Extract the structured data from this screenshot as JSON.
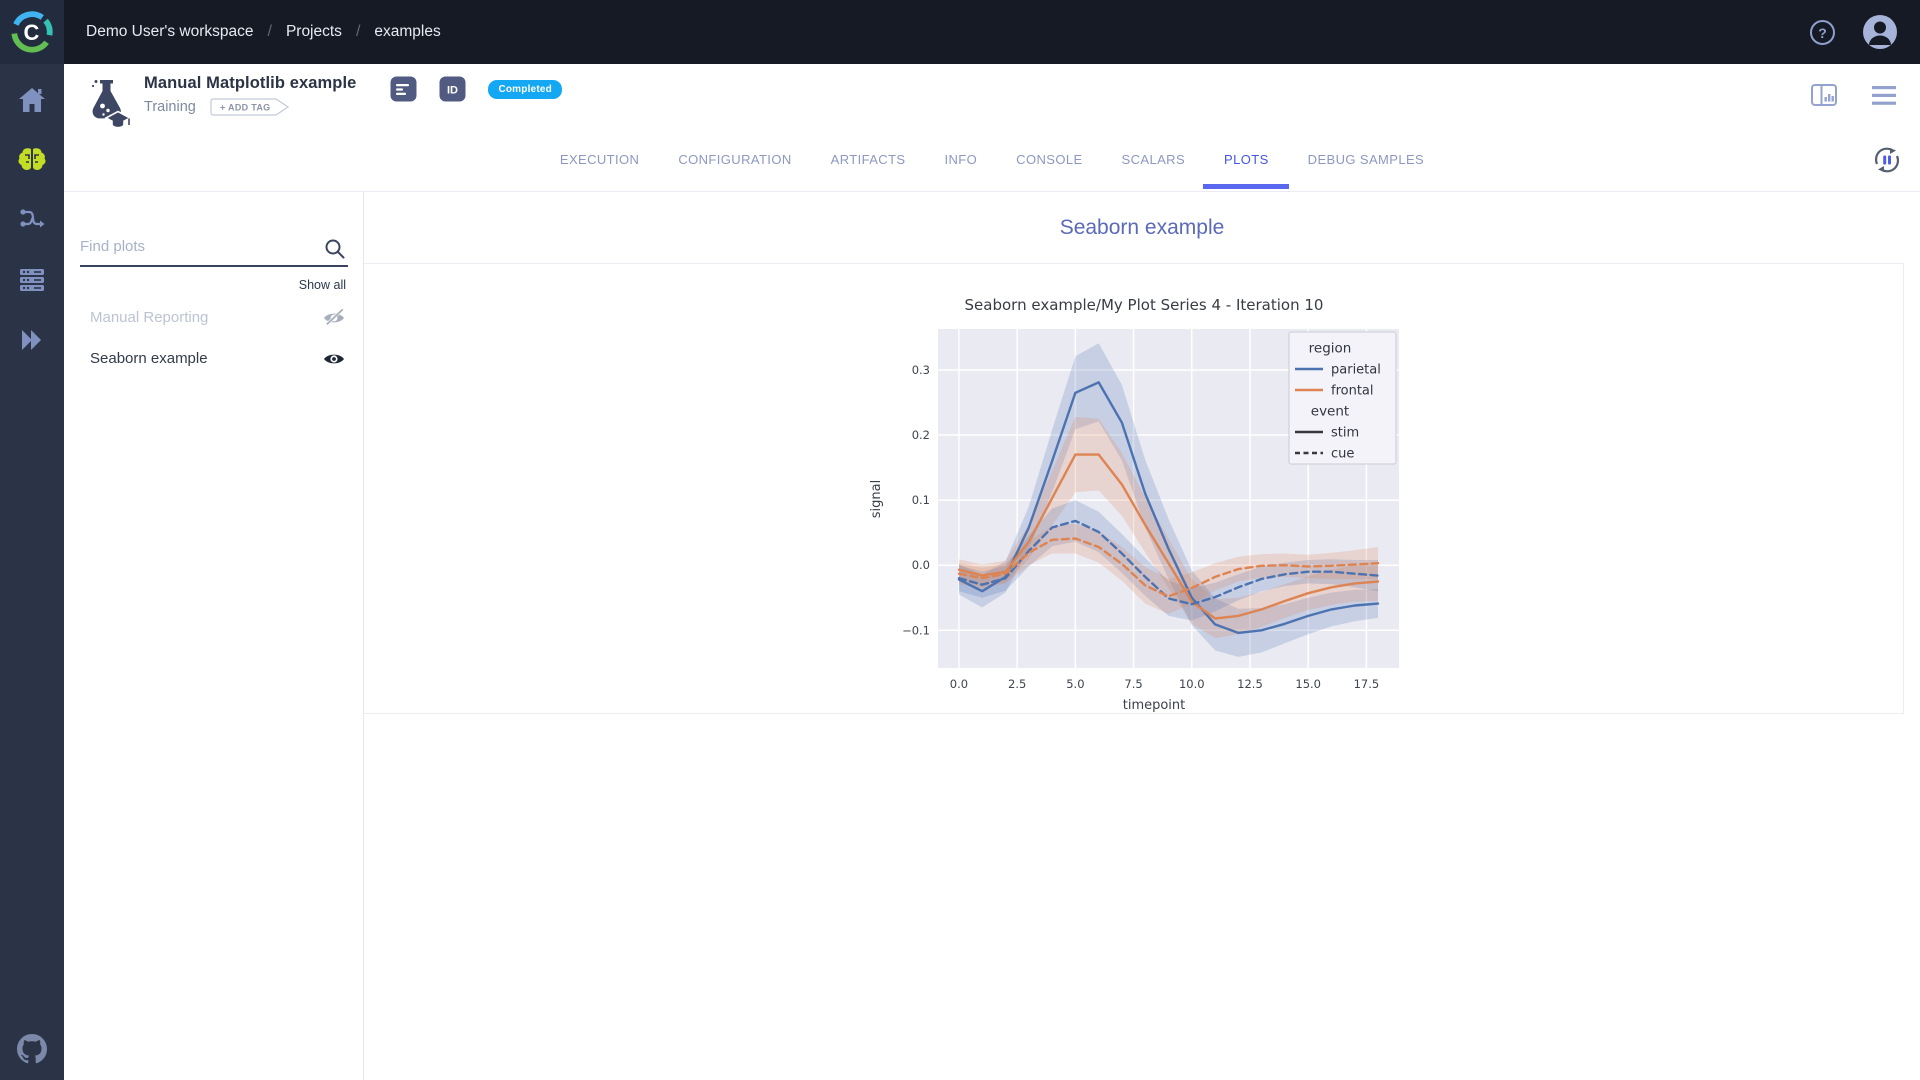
{
  "topbar": {
    "breadcrumbs": [
      "Demo User's workspace",
      "Projects",
      "examples"
    ],
    "icons": [
      "clearml-logo",
      "help-icon",
      "avatar"
    ]
  },
  "sidebar": {
    "icons": [
      "home-icon",
      "projects-brain-icon",
      "pipelines-icon",
      "datasets-icon",
      "reports-icon",
      "github-icon"
    ],
    "active_color": "#c3dd25",
    "icon_color": "#8091c0"
  },
  "header": {
    "title": "Manual Matplotlib example",
    "status": "Training",
    "add_tag_label": "+ ADD TAG",
    "badge": "Completed",
    "badge_color": "#14a8f4",
    "icons": [
      "experiment-flask-icon",
      "description-icon",
      "id-icon",
      "layout-icon",
      "menu-icon"
    ]
  },
  "tabs": {
    "items": [
      "EXECUTION",
      "CONFIGURATION",
      "ARTIFACTS",
      "INFO",
      "CONSOLE",
      "SCALARS",
      "PLOTS",
      "DEBUG SAMPLES"
    ],
    "active": "PLOTS",
    "active_color": "#4554e6"
  },
  "plots_panel": {
    "search_placeholder": "Find plots",
    "show_all": "Show all",
    "items": [
      {
        "label": "Manual Reporting",
        "visible": false
      },
      {
        "label": "Seaborn example",
        "visible": true
      }
    ]
  },
  "main": {
    "heading": "Seaborn example"
  },
  "chart_data": {
    "type": "line",
    "title": "Seaborn example/My Plot Series 4 - Iteration 10",
    "xlabel": "timepoint",
    "ylabel": "signal",
    "x": [
      0,
      1,
      2,
      3,
      4,
      5,
      6,
      7,
      8,
      9,
      10,
      11,
      12,
      13,
      14,
      15,
      16,
      17,
      18
    ],
    "xlim": [
      -0.9,
      18.9
    ],
    "ylim": [
      -0.158,
      0.363
    ],
    "xticks": [
      0.0,
      2.5,
      5.0,
      7.5,
      10.0,
      12.5,
      15.0,
      17.5
    ],
    "yticks": [
      -0.1,
      0.0,
      0.1,
      0.2,
      0.3
    ],
    "background": "#eaeaf2",
    "grid_color": "#ffffff",
    "series": [
      {
        "name": "parietal-stim",
        "region": "parietal",
        "event": "stim",
        "color": "#4c72b0",
        "dash": "solid",
        "values": [
          -0.022,
          -0.04,
          -0.018,
          0.058,
          0.16,
          0.265,
          0.281,
          0.219,
          0.11,
          0.025,
          -0.05,
          -0.091,
          -0.104,
          -0.1,
          -0.09,
          -0.078,
          -0.068,
          -0.062,
          -0.059
        ],
        "band": [
          0.023,
          0.025,
          0.024,
          0.032,
          0.048,
          0.056,
          0.06,
          0.058,
          0.052,
          0.046,
          0.042,
          0.04,
          0.037,
          0.034,
          0.03,
          0.028,
          0.026,
          0.024,
          0.022
        ]
      },
      {
        "name": "frontal-stim",
        "region": "frontal",
        "event": "stim",
        "color": "#dd8452",
        "dash": "solid",
        "values": [
          -0.007,
          -0.016,
          -0.01,
          0.036,
          0.103,
          0.17,
          0.17,
          0.124,
          0.062,
          0.003,
          -0.056,
          -0.082,
          -0.078,
          -0.068,
          -0.055,
          -0.043,
          -0.034,
          -0.028,
          -0.025
        ],
        "band": [
          0.016,
          0.017,
          0.017,
          0.026,
          0.042,
          0.058,
          0.055,
          0.048,
          0.042,
          0.038,
          0.034,
          0.03,
          0.028,
          0.027,
          0.026,
          0.026,
          0.027,
          0.028,
          0.03
        ]
      },
      {
        "name": "parietal-cue",
        "region": "parietal",
        "event": "cue",
        "color": "#4c72b0",
        "dash": "dashed",
        "values": [
          -0.02,
          -0.03,
          -0.02,
          0.022,
          0.058,
          0.068,
          0.051,
          0.018,
          -0.018,
          -0.051,
          -0.06,
          -0.049,
          -0.034,
          -0.021,
          -0.014,
          -0.01,
          -0.01,
          -0.013,
          -0.016
        ],
        "band": [
          0.02,
          0.02,
          0.019,
          0.024,
          0.029,
          0.032,
          0.031,
          0.03,
          0.029,
          0.027,
          0.025,
          0.022,
          0.02,
          0.019,
          0.018,
          0.018,
          0.019,
          0.021,
          0.024
        ]
      },
      {
        "name": "frontal-cue",
        "region": "frontal",
        "event": "cue",
        "color": "#dd8452",
        "dash": "dashed",
        "values": [
          -0.013,
          -0.02,
          -0.013,
          0.019,
          0.039,
          0.041,
          0.028,
          0.002,
          -0.031,
          -0.048,
          -0.035,
          -0.018,
          -0.006,
          -0.001,
          0.0,
          -0.002,
          -0.001,
          0.001,
          0.003
        ],
        "band": [
          0.016,
          0.016,
          0.015,
          0.019,
          0.021,
          0.023,
          0.024,
          0.026,
          0.028,
          0.027,
          0.024,
          0.021,
          0.019,
          0.018,
          0.018,
          0.018,
          0.02,
          0.022,
          0.025
        ]
      }
    ],
    "legend": {
      "region_title": "region",
      "event_title": "event",
      "entries": [
        {
          "label": "parietal",
          "color": "#4c72b0",
          "dash": "solid"
        },
        {
          "label": "frontal",
          "color": "#dd8452",
          "dash": "solid"
        },
        {
          "label": "stim",
          "color": "#37393f",
          "dash": "solid"
        },
        {
          "label": "cue",
          "color": "#37393f",
          "dash": "dashed"
        }
      ],
      "position": "upper right"
    }
  }
}
